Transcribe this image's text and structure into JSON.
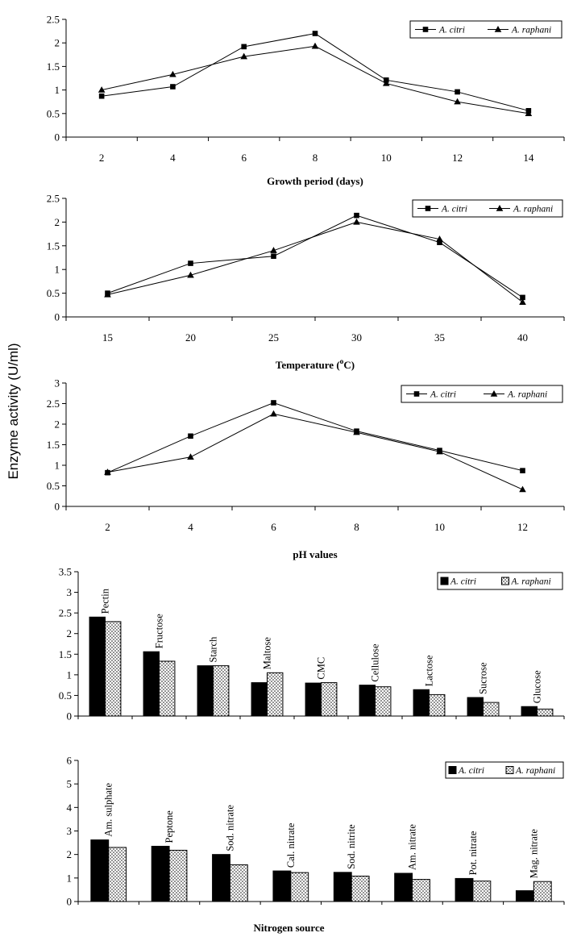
{
  "figure": {
    "ylabel": "Enzyme activity (U/ml)"
  },
  "chart_data": [
    {
      "type": "line",
      "title": "",
      "xlabel": "Growth period (days)",
      "ylabel": "",
      "x": [
        2,
        4,
        6,
        8,
        10,
        12,
        14
      ],
      "x_ticks": [
        "2",
        "4",
        "6",
        "8",
        "10",
        "12",
        "14"
      ],
      "ylim": [
        0,
        2.5
      ],
      "y_ticks": [
        "0",
        "0.5",
        "1",
        "1.5",
        "2",
        "2.5"
      ],
      "legend_position": "top-right",
      "series": [
        {
          "name": "A. citri",
          "marker": "square",
          "values": [
            0.87,
            1.07,
            1.92,
            2.2,
            1.21,
            0.96,
            0.56
          ]
        },
        {
          "name": "A. raphani",
          "marker": "triangle",
          "values": [
            1.0,
            1.33,
            1.71,
            1.93,
            1.14,
            0.75,
            0.5
          ]
        }
      ]
    },
    {
      "type": "line",
      "title": "",
      "xlabel": "Temperature (",
      "xlabel_sup": "o",
      "xlabel_after": "C)",
      "ylabel": "",
      "x": [
        15,
        20,
        25,
        30,
        35,
        40
      ],
      "x_ticks": [
        "15",
        "20",
        "25",
        "30",
        "35",
        "40"
      ],
      "ylim": [
        0,
        2.5
      ],
      "y_ticks": [
        "0",
        "0.5",
        "1",
        "1.5",
        "2",
        "2.5"
      ],
      "legend_position": "top-right",
      "series": [
        {
          "name": "A. citri",
          "marker": "square",
          "values": [
            0.5,
            1.13,
            1.28,
            2.14,
            1.57,
            0.41
          ]
        },
        {
          "name": "A. raphani",
          "marker": "triangle",
          "values": [
            0.47,
            0.88,
            1.4,
            2.0,
            1.64,
            0.31
          ]
        }
      ]
    },
    {
      "type": "line",
      "title": "",
      "xlabel": "pH values",
      "ylabel": "",
      "x": [
        2,
        4,
        6,
        8,
        10,
        12
      ],
      "x_ticks": [
        "2",
        "4",
        "6",
        "8",
        "10",
        "12"
      ],
      "ylim": [
        0,
        3
      ],
      "y_ticks": [
        "0",
        "0.5",
        "1",
        "1.5",
        "2",
        "2.5",
        "3"
      ],
      "legend_position": "top-right",
      "series": [
        {
          "name": "A. citri",
          "marker": "square",
          "values": [
            0.82,
            1.71,
            2.52,
            1.83,
            1.36,
            0.87
          ]
        },
        {
          "name": "A. raphani",
          "marker": "triangle",
          "values": [
            0.83,
            1.2,
            2.25,
            1.8,
            1.33,
            0.41
          ]
        }
      ]
    },
    {
      "type": "bar",
      "title": "",
      "xlabel": "",
      "ylabel": "",
      "categories": [
        "Pectin",
        "Fructose",
        "Starch",
        "Maltose",
        "CMC",
        "Cellulose",
        "Lactose",
        "Sucrose",
        "Glucose"
      ],
      "ylim": [
        0,
        3.5
      ],
      "y_ticks": [
        "0",
        "0.5",
        "1",
        "1.5",
        "2",
        "2.5",
        "3",
        "3.5"
      ],
      "legend_position": "top-right",
      "series": [
        {
          "name": "A. citri",
          "fill": "solid-black",
          "values": [
            2.4,
            1.56,
            1.22,
            0.81,
            0.8,
            0.75,
            0.64,
            0.45,
            0.23
          ]
        },
        {
          "name": "A. raphani",
          "fill": "dotted",
          "values": [
            2.29,
            1.33,
            1.22,
            1.05,
            0.81,
            0.71,
            0.52,
            0.33,
            0.17
          ]
        }
      ]
    },
    {
      "type": "bar",
      "title": "",
      "xlabel": "Nitrogen source",
      "ylabel": "",
      "categories": [
        "Am. sulphate",
        "Peptone",
        "Sod. nitrate",
        "Cal. nitrate",
        "Sod. nitrite",
        "Am. nitrate",
        "Pot. nitrate",
        "Mag. nitrate"
      ],
      "ylim": [
        0,
        6
      ],
      "y_ticks": [
        "0",
        "1",
        "2",
        "3",
        "4",
        "5",
        "6"
      ],
      "legend_position": "top-right",
      "series": [
        {
          "name": "A. citri",
          "fill": "solid-black",
          "values": [
            2.62,
            2.35,
            2.0,
            1.3,
            1.24,
            1.2,
            0.98,
            0.46
          ]
        },
        {
          "name": "A. raphani",
          "fill": "dotted",
          "values": [
            2.3,
            2.18,
            1.56,
            1.23,
            1.08,
            0.94,
            0.87,
            0.85
          ]
        }
      ]
    }
  ]
}
